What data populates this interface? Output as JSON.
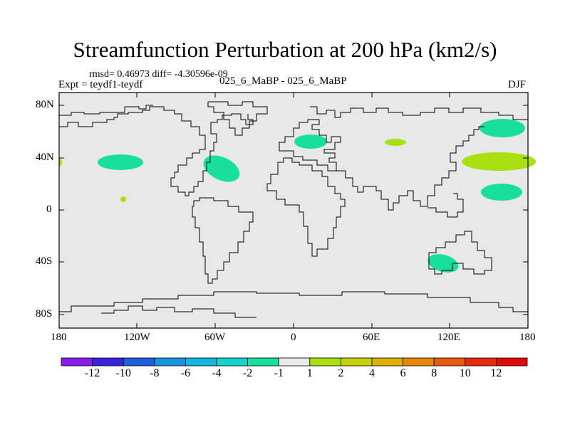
{
  "title": "Streamfunction Perturbation at 200 hPa (km2/s)",
  "stats": "rmsd= 0.46973 diff= -4.30596e-09",
  "experiment": "Expt = teydf1-teydf",
  "comparison": "025_6_MaBP - 025_6_MaBP",
  "season": "DJF",
  "axes": {
    "lat_ticks": [
      "80N",
      "40N",
      "0",
      "40S",
      "80S"
    ],
    "lon_ticks": [
      "180",
      "120W",
      "60W",
      "0",
      "60E",
      "120E",
      "180"
    ]
  },
  "colorbar": {
    "labels": [
      "-12",
      "-10",
      "-8",
      "-6",
      "-4",
      "-2",
      "-1",
      "1",
      "2",
      "4",
      "6",
      "8",
      "10",
      "12"
    ],
    "colors": [
      "#8a1ee8",
      "#3a23dc",
      "#1f5fdc",
      "#1a93e0",
      "#14b7df",
      "#16d3cf",
      "#18e09c",
      "#e8e8e8",
      "#a8e010",
      "#c8cf0c",
      "#e0b00a",
      "#e8860a",
      "#e85a0c",
      "#e62a10",
      "#e00a0a"
    ]
  },
  "colors": {
    "background": "#e8e8e8",
    "coast": "#000000",
    "neg_anomaly": "#18e09c",
    "pos_anomaly": "#a8e010"
  }
}
